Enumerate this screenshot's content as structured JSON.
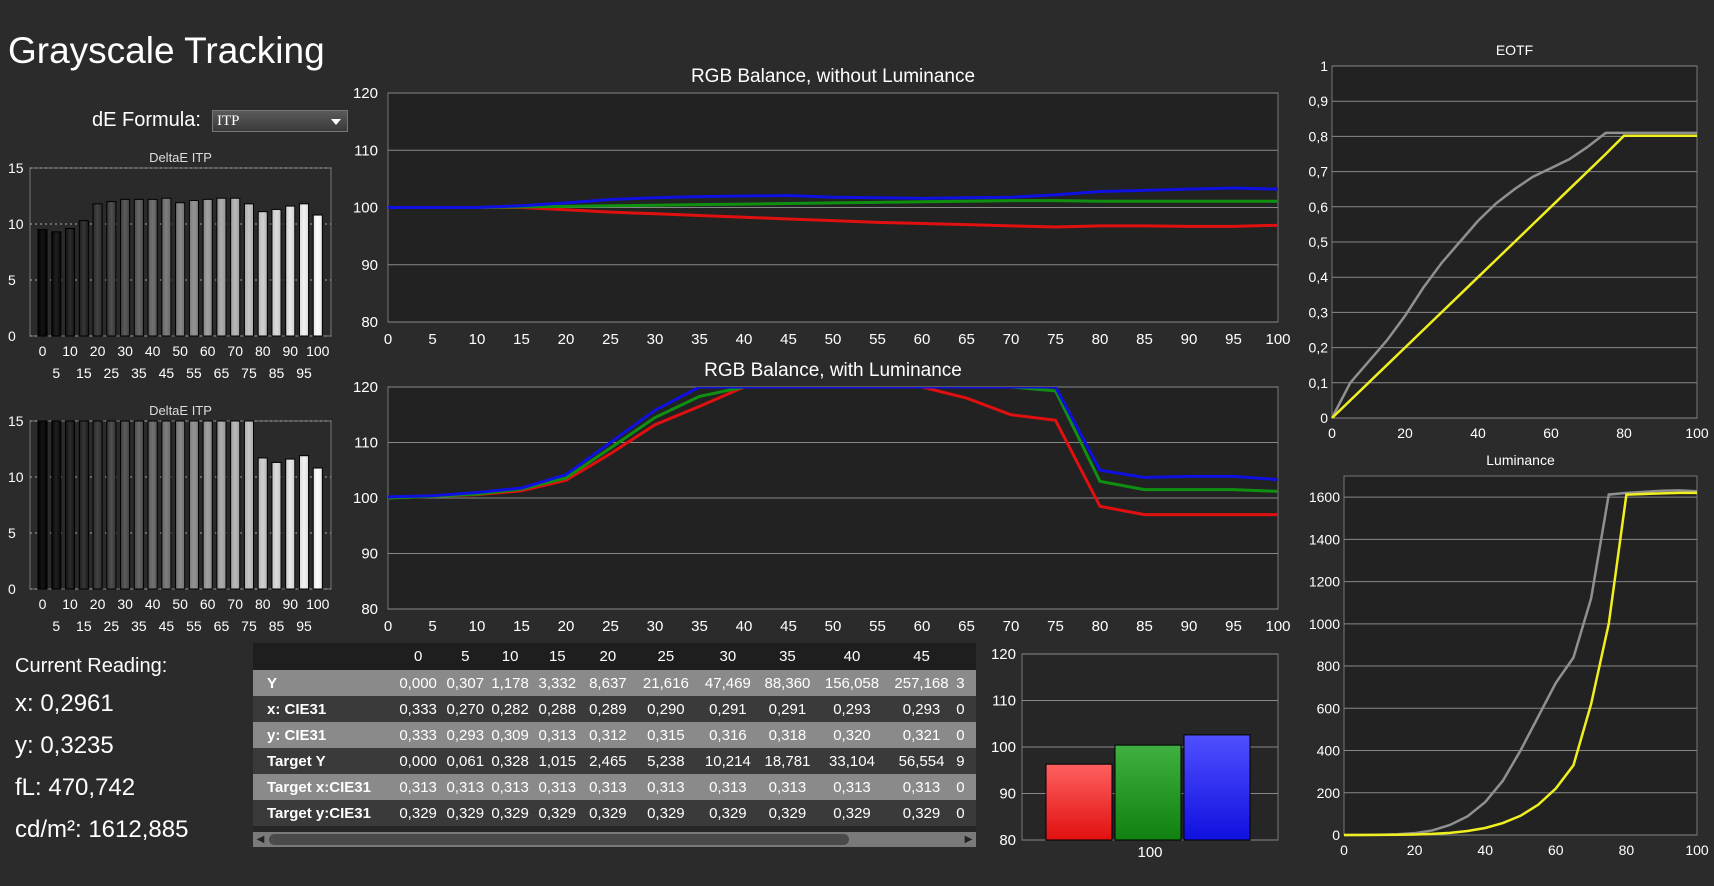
{
  "page": {
    "title": "Grayscale Tracking"
  },
  "de_formula": {
    "label": "dE Formula:",
    "selected": "ITP"
  },
  "colors": {
    "red": "#e01010",
    "green": "#109010",
    "blue": "#1010e0",
    "yellow": "#f0f020",
    "gray": "#909090"
  },
  "current_reading": {
    "header": "Current Reading:",
    "x": "x: 0,2961",
    "y": "y: 0,3235",
    "fl": "fL: 470,742",
    "cdm2": "cd/m²: 1612,885"
  },
  "table": {
    "columns": [
      "0",
      "5",
      "10",
      "15",
      "20",
      "25",
      "30",
      "35",
      "40",
      "45"
    ],
    "rows": [
      {
        "label": "Y",
        "values": [
          "0,000",
          "0,307",
          "1,178",
          "3,332",
          "8,637",
          "21,616",
          "47,469",
          "88,360",
          "156,058",
          "257,168"
        ],
        "overflow": "3"
      },
      {
        "label": "x: CIE31",
        "values": [
          "0,333",
          "0,270",
          "0,282",
          "0,288",
          "0,289",
          "0,290",
          "0,291",
          "0,291",
          "0,293",
          "0,293"
        ],
        "overflow": "0"
      },
      {
        "label": "y: CIE31",
        "values": [
          "0,333",
          "0,293",
          "0,309",
          "0,313",
          "0,312",
          "0,315",
          "0,316",
          "0,318",
          "0,320",
          "0,321"
        ],
        "overflow": "0"
      },
      {
        "label": "Target Y",
        "values": [
          "0,000",
          "0,061",
          "0,328",
          "1,015",
          "2,465",
          "5,238",
          "10,214",
          "18,781",
          "33,104",
          "56,554"
        ],
        "overflow": "9"
      },
      {
        "label": "Target x:CIE31",
        "values": [
          "0,313",
          "0,313",
          "0,313",
          "0,313",
          "0,313",
          "0,313",
          "0,313",
          "0,313",
          "0,313",
          "0,313"
        ],
        "overflow": "0"
      },
      {
        "label": "Target y:CIE31",
        "values": [
          "0,329",
          "0,329",
          "0,329",
          "0,329",
          "0,329",
          "0,329",
          "0,329",
          "0,329",
          "0,329",
          "0,329"
        ],
        "overflow": "0"
      }
    ]
  },
  "chart_data": [
    {
      "id": "deltae1",
      "type": "bar",
      "title": "DeltaE ITP",
      "categories": [
        "0",
        "5",
        "10",
        "15",
        "20",
        "25",
        "30",
        "35",
        "40",
        "45",
        "50",
        "55",
        "60",
        "65",
        "70",
        "75",
        "80",
        "85",
        "90",
        "95",
        "100"
      ],
      "values": [
        9.5,
        9.3,
        9.6,
        10.3,
        11.8,
        12.0,
        12.2,
        12.2,
        12.2,
        12.3,
        11.9,
        12.1,
        12.2,
        12.3,
        12.3,
        11.8,
        11.1,
        11.3,
        11.6,
        11.8,
        10.8
      ],
      "ylim": [
        0,
        15
      ],
      "yticks": [
        "0",
        "5",
        "10",
        "15"
      ],
      "xticks_top": [
        "0",
        "10",
        "20",
        "30",
        "40",
        "50",
        "60",
        "70",
        "80",
        "90",
        "100"
      ],
      "xticks_bottom": [
        "5",
        "15",
        "25",
        "35",
        "45",
        "55",
        "65",
        "75",
        "85",
        "95"
      ]
    },
    {
      "id": "deltae2",
      "type": "bar",
      "title": "DeltaE ITP",
      "categories": [
        "0",
        "5",
        "10",
        "15",
        "20",
        "25",
        "30",
        "35",
        "40",
        "45",
        "50",
        "55",
        "60",
        "65",
        "70",
        "75",
        "80",
        "85",
        "90",
        "95",
        "100"
      ],
      "values": [
        15,
        15,
        15,
        15,
        15,
        15,
        15,
        15,
        15,
        15,
        15,
        15,
        15,
        15,
        15,
        15,
        11.7,
        11.3,
        11.6,
        11.9,
        10.8
      ],
      "ylim": [
        0,
        15
      ],
      "yticks": [
        "0",
        "5",
        "10",
        "15"
      ],
      "xticks_top": [
        "0",
        "10",
        "20",
        "30",
        "40",
        "50",
        "60",
        "70",
        "80",
        "90",
        "100"
      ],
      "xticks_bottom": [
        "5",
        "15",
        "25",
        "35",
        "45",
        "55",
        "65",
        "75",
        "85",
        "95"
      ]
    },
    {
      "id": "rgb1",
      "type": "line",
      "title": "RGB Balance, without Luminance",
      "x": [
        0,
        5,
        10,
        15,
        20,
        25,
        30,
        35,
        40,
        45,
        50,
        55,
        60,
        65,
        70,
        75,
        80,
        85,
        90,
        95,
        100
      ],
      "series": [
        {
          "color": "red",
          "values": [
            100,
            100,
            100,
            100,
            99.6,
            99.2,
            98.9,
            98.6,
            98.3,
            98.0,
            97.7,
            97.4,
            97.2,
            97.0,
            96.8,
            96.6,
            96.8,
            96.8,
            96.7,
            96.7,
            96.9
          ]
        },
        {
          "color": "green",
          "values": [
            100,
            100,
            100,
            100.1,
            100.2,
            100.3,
            100.4,
            100.5,
            100.6,
            100.7,
            100.8,
            100.9,
            101.0,
            101.1,
            101.2,
            101.2,
            101.1,
            101.1,
            101.1,
            101.1,
            101.1
          ]
        },
        {
          "color": "blue",
          "values": [
            100,
            100,
            100,
            100.3,
            100.8,
            101.4,
            101.7,
            101.9,
            102.0,
            102.1,
            101.8,
            101.7,
            101.6,
            101.7,
            101.8,
            102.2,
            102.8,
            103.0,
            103.2,
            103.4,
            103.2
          ]
        }
      ],
      "ylim": [
        80,
        120
      ],
      "yticks": [
        "80",
        "90",
        "100",
        "110",
        "120"
      ],
      "xticks": [
        "0",
        "5",
        "10",
        "15",
        "20",
        "25",
        "30",
        "35",
        "40",
        "45",
        "50",
        "55",
        "60",
        "65",
        "70",
        "75",
        "80",
        "85",
        "90",
        "95",
        "100"
      ]
    },
    {
      "id": "rgb2",
      "type": "line",
      "title": "RGB Balance, with Luminance",
      "x": [
        0,
        5,
        10,
        15,
        20,
        25,
        30,
        35,
        40,
        45,
        50,
        55,
        60,
        65,
        70,
        75,
        80,
        85,
        90,
        95,
        100
      ],
      "series": [
        {
          "color": "red",
          "values": [
            100,
            100.3,
            100.6,
            101.3,
            103.2,
            108.0,
            113.2,
            116.5,
            120,
            120,
            120,
            120,
            120,
            118,
            115,
            114,
            98.5,
            97,
            97,
            97,
            97
          ]
        },
        {
          "color": "green",
          "values": [
            100,
            100.3,
            100.7,
            101.6,
            103.6,
            109,
            114.5,
            118.3,
            120,
            120,
            120,
            120,
            120,
            120,
            120,
            119.3,
            103,
            101.5,
            101.5,
            101.5,
            101.2
          ]
        },
        {
          "color": "blue",
          "values": [
            100.2,
            100.4,
            101,
            101.8,
            104.2,
            110,
            115.8,
            120,
            120,
            120,
            120,
            120,
            120,
            120,
            120,
            120,
            105,
            103.7,
            103.9,
            103.9,
            103.3
          ]
        }
      ],
      "ylim": [
        80,
        120
      ],
      "yticks": [
        "80",
        "90",
        "100",
        "110",
        "120"
      ],
      "xticks": [
        "0",
        "5",
        "10",
        "15",
        "20",
        "25",
        "30",
        "35",
        "40",
        "45",
        "50",
        "55",
        "60",
        "65",
        "70",
        "75",
        "80",
        "85",
        "90",
        "95",
        "100"
      ]
    },
    {
      "id": "current_bars",
      "type": "bar",
      "categories": [
        "100"
      ],
      "series": [
        {
          "color": "red",
          "values": [
            96.3
          ]
        },
        {
          "color": "green",
          "values": [
            100.4
          ]
        },
        {
          "color": "blue",
          "values": [
            102.6
          ]
        }
      ],
      "ylim": [
        80,
        120
      ],
      "yticks": [
        "80",
        "90",
        "100",
        "110",
        "120"
      ]
    },
    {
      "id": "eotf",
      "type": "line",
      "title": "EOTF",
      "x": [
        0,
        5,
        10,
        15,
        20,
        25,
        30,
        35,
        40,
        45,
        50,
        55,
        60,
        65,
        70,
        75,
        80,
        85,
        90,
        95,
        100
      ],
      "series": [
        {
          "color": "gray",
          "values": [
            0,
            0.1,
            0.16,
            0.22,
            0.29,
            0.37,
            0.44,
            0.5,
            0.56,
            0.61,
            0.65,
            0.685,
            0.71,
            0.735,
            0.77,
            0.81,
            0.81,
            0.81,
            0.81,
            0.81,
            0.81
          ]
        },
        {
          "color": "yellow",
          "values": [
            0,
            0.05,
            0.1,
            0.15,
            0.2,
            0.25,
            0.3,
            0.35,
            0.4,
            0.45,
            0.5,
            0.55,
            0.6,
            0.65,
            0.7,
            0.75,
            0.802,
            0.802,
            0.802,
            0.802,
            0.802
          ]
        }
      ],
      "ylim": [
        0,
        1
      ],
      "yticks": [
        "0",
        "0,1",
        "0,2",
        "0,3",
        "0,4",
        "0,5",
        "0,6",
        "0,7",
        "0,8",
        "0,9",
        "1"
      ],
      "xticks": [
        "0",
        "20",
        "40",
        "60",
        "80",
        "100"
      ]
    },
    {
      "id": "luminance",
      "type": "line",
      "title": "Luminance",
      "x": [
        0,
        5,
        10,
        15,
        20,
        25,
        30,
        35,
        40,
        45,
        50,
        55,
        60,
        65,
        70,
        75,
        80,
        85,
        90,
        95,
        100
      ],
      "series": [
        {
          "color": "gray",
          "values": [
            0,
            0.3,
            1.2,
            3.3,
            8.6,
            21.6,
            47.5,
            88.4,
            156,
            257,
            400,
            560,
            720,
            840,
            1120,
            1612,
            1620,
            1625,
            1630,
            1632,
            1628
          ]
        },
        {
          "color": "yellow",
          "values": [
            0,
            0.06,
            0.33,
            1.0,
            2.5,
            5.2,
            10.2,
            18.8,
            33.1,
            56.6,
            91,
            143,
            220,
            330,
            620,
            1000,
            1612,
            1615,
            1618,
            1620,
            1620
          ]
        }
      ],
      "ylim": [
        0,
        1700
      ],
      "yticks": [
        "0",
        "200",
        "400",
        "600",
        "800",
        "1000",
        "1200",
        "1400",
        "1600"
      ],
      "xticks": [
        "0",
        "20",
        "40",
        "60",
        "80",
        "100"
      ]
    }
  ]
}
